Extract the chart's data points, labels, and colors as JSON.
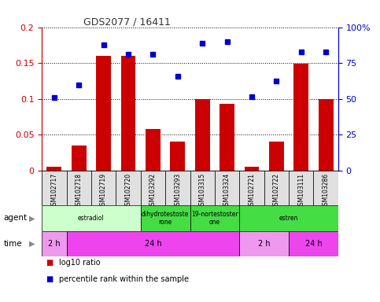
{
  "title": "GDS2077 / 16411",
  "samples": [
    "GSM102717",
    "GSM102718",
    "GSM102719",
    "GSM102720",
    "GSM103292",
    "GSM103293",
    "GSM103315",
    "GSM103324",
    "GSM102721",
    "GSM102722",
    "GSM103111",
    "GSM103286"
  ],
  "log10_ratio": [
    0.005,
    0.035,
    0.16,
    0.16,
    0.058,
    0.04,
    0.1,
    0.093,
    0.005,
    0.04,
    0.149,
    0.1
  ],
  "percentile_rank": [
    51,
    60,
    87.5,
    81,
    81,
    66,
    89,
    90,
    51.5,
    62.5,
    83,
    83
  ],
  "bar_color": "#cc0000",
  "dot_color": "#0000cc",
  "agent_groups": [
    {
      "label": "estradiol",
      "start": 0,
      "end": 4,
      "color": "#ccffcc"
    },
    {
      "label": "dihydrotestoste\nrone",
      "start": 4,
      "end": 6,
      "color": "#44dd44"
    },
    {
      "label": "19-nortestoster\none",
      "start": 6,
      "end": 8,
      "color": "#44dd44"
    },
    {
      "label": "estren",
      "start": 8,
      "end": 12,
      "color": "#44dd44"
    }
  ],
  "time_groups": [
    {
      "label": "2 h",
      "start": 0,
      "end": 1,
      "color": "#ee99ee"
    },
    {
      "label": "24 h",
      "start": 1,
      "end": 8,
      "color": "#ee44ee"
    },
    {
      "label": "2 h",
      "start": 8,
      "end": 10,
      "color": "#ee99ee"
    },
    {
      "label": "24 h",
      "start": 10,
      "end": 12,
      "color": "#ee44ee"
    }
  ],
  "ylim_left": [
    0,
    0.2
  ],
  "ylim_right": [
    0,
    100
  ],
  "yticks_left": [
    0,
    0.05,
    0.1,
    0.15,
    0.2
  ],
  "yticks_left_labels": [
    "0",
    "0.05",
    "0.1",
    "0.15",
    "0.2"
  ],
  "yticks_right": [
    0,
    25,
    50,
    75,
    100
  ],
  "yticks_right_labels": [
    "0",
    "25",
    "50",
    "75",
    "100%"
  ],
  "legend_red": "log10 ratio",
  "legend_blue": "percentile rank within the sample",
  "agent_label": "agent",
  "time_label": "time",
  "title_color": "#333333",
  "left_axis_color": "#cc0000",
  "right_axis_color": "#0000cc",
  "fig_width": 4.83,
  "fig_height": 3.84,
  "dpi": 100
}
